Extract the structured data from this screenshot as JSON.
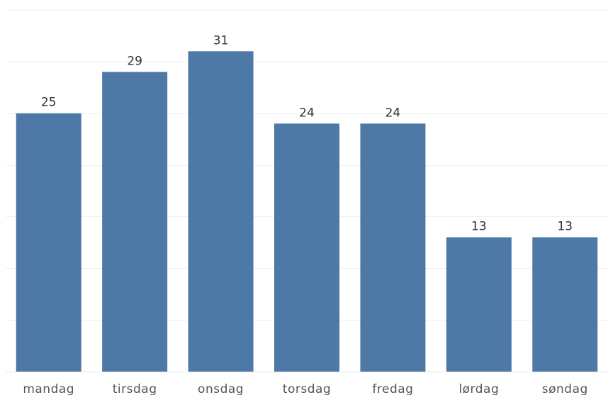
{
  "chart_data": {
    "type": "bar",
    "title": "",
    "xlabel": "",
    "ylabel": "",
    "categories": [
      "mandag",
      "tirsdag",
      "onsdag",
      "torsdag",
      "fredag",
      "lørdag",
      "søndag"
    ],
    "values": [
      25,
      29,
      31,
      24,
      24,
      13,
      13
    ],
    "ylim": [
      0,
      35
    ],
    "grid": true,
    "data_labels": true,
    "colors": {
      "bar": "#4e79a7",
      "grid": "#efefef"
    }
  }
}
